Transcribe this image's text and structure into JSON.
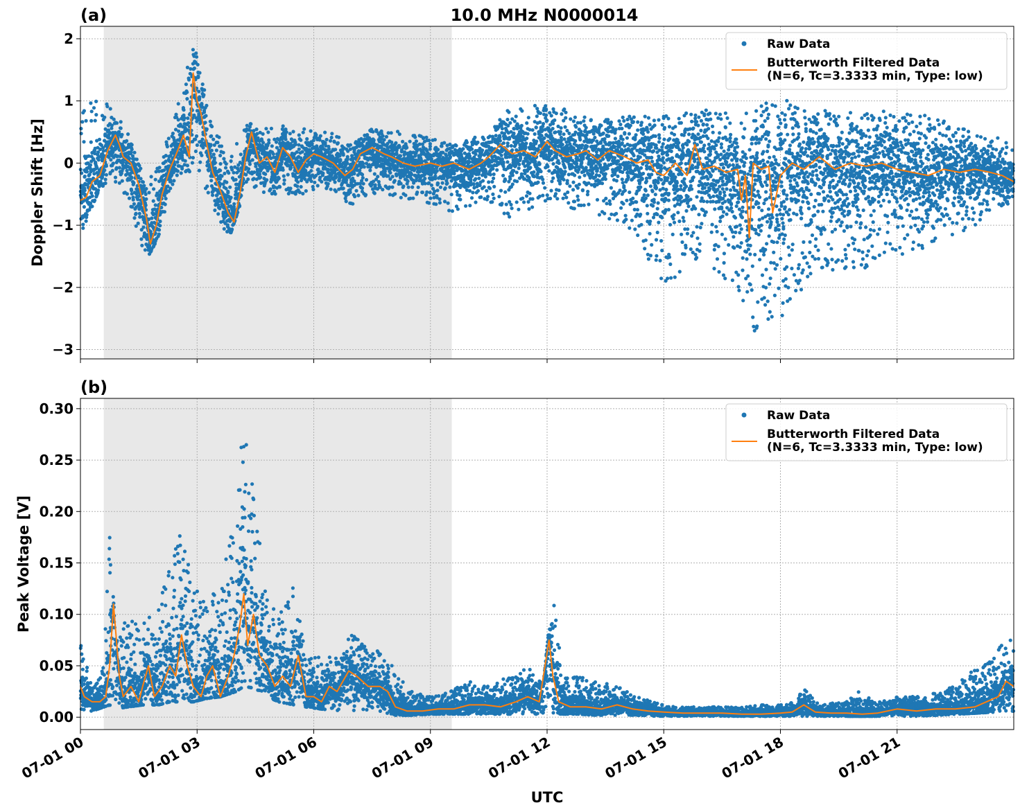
{
  "figure": {
    "title": "10.0 MHz N0000014",
    "xlabel": "UTC"
  },
  "colors": {
    "raw": "#1f77b4",
    "filtered": "#ff7f0e",
    "shade": "#e8e8e8",
    "grid": "#b0b0b0"
  },
  "chart_data": [
    {
      "type": "scatter",
      "panel_label": "(a)",
      "title": "10.0 MHz N0000014",
      "xlabel": "",
      "ylabel": "Doppler Shift [Hz]",
      "xlim_hours": [
        0,
        24
      ],
      "ylim": [
        -3.15,
        2.2
      ],
      "yticks": [
        2,
        1,
        0,
        -1,
        -2,
        -3
      ],
      "ytick_labels": [
        "2",
        "1",
        "0",
        "−1",
        "−2",
        "−3"
      ],
      "grid": true,
      "legend_position": "top-right",
      "shaded_interval_hours": [
        0.6,
        9.55
      ],
      "series": [
        {
          "name": "Raw Data",
          "kind": "points",
          "envelope_x": [
            0,
            0.5,
            0.8,
            1.2,
            1.7,
            2.0,
            2.4,
            2.9,
            3.4,
            3.8,
            4.3,
            4.7,
            5.2,
            5.7,
            6.3,
            7.0,
            7.5,
            8.5,
            9.5,
            10.5,
            11.0,
            12.0,
            13.0,
            14.0,
            15.0,
            16.0,
            17.0,
            17.2,
            18.0,
            19.0,
            20.0,
            21.0,
            22.0,
            23.0,
            24.0
          ],
          "envelope_low": [
            -1.15,
            -0.4,
            -0.3,
            -0.6,
            -1.55,
            -1.2,
            -0.3,
            -0.1,
            -0.7,
            -1.25,
            -0.3,
            -0.5,
            -0.5,
            -0.5,
            -0.4,
            -0.7,
            -0.5,
            -0.6,
            -0.8,
            -0.6,
            -0.9,
            -0.6,
            -0.8,
            -1.0,
            -2.0,
            -1.5,
            -2.2,
            -2.9,
            -2.5,
            -1.7,
            -1.8,
            -1.5,
            -1.3,
            -1.0,
            -0.6
          ],
          "envelope_high": [
            0.9,
            1.05,
            0.9,
            0.55,
            -0.3,
            0.0,
            0.65,
            1.95,
            0.7,
            0.05,
            0.65,
            0.55,
            0.6,
            0.55,
            0.55,
            0.3,
            0.55,
            0.5,
            0.3,
            0.5,
            0.9,
            0.95,
            0.8,
            0.75,
            0.75,
            0.85,
            0.85,
            0.8,
            1.1,
            0.85,
            0.8,
            0.85,
            0.75,
            0.5,
            0.35
          ]
        },
        {
          "name": "Butterworth Filtered Data\n(N=6, Tc=3.3333 min, Type: low)",
          "kind": "line",
          "x": [
            0,
            0.15,
            0.3,
            0.5,
            0.7,
            0.9,
            1.0,
            1.1,
            1.3,
            1.5,
            1.7,
            1.8,
            1.95,
            2.1,
            2.3,
            2.5,
            2.65,
            2.8,
            2.9,
            3.0,
            3.1,
            3.25,
            3.4,
            3.6,
            3.8,
            3.95,
            4.1,
            4.25,
            4.4,
            4.6,
            4.8,
            5.0,
            5.2,
            5.4,
            5.6,
            5.8,
            6.0,
            6.2,
            6.5,
            6.8,
            7.0,
            7.2,
            7.5,
            7.8,
            8.0,
            8.3,
            8.6,
            9.0,
            9.3,
            9.6,
            10.0,
            10.3,
            10.5,
            10.8,
            11.1,
            11.4,
            11.7,
            12.0,
            12.2,
            12.5,
            12.8,
            13.0,
            13.3,
            13.6,
            14.0,
            14.3,
            14.6,
            14.8,
            15.0,
            15.3,
            15.6,
            15.8,
            16.0,
            16.3,
            16.6,
            16.9,
            17.0,
            17.1,
            17.2,
            17.3,
            17.5,
            17.7,
            17.8,
            18.0,
            18.3,
            18.6,
            19.0,
            19.4,
            19.8,
            20.2,
            20.6,
            21.0,
            21.4,
            21.8,
            22.2,
            22.6,
            23.0,
            23.4,
            23.7,
            24.0
          ],
          "y": [
            -0.6,
            -0.55,
            -0.3,
            -0.2,
            0.2,
            0.45,
            0.3,
            0.1,
            0.0,
            -0.35,
            -0.9,
            -1.3,
            -1.0,
            -0.5,
            -0.1,
            0.2,
            0.45,
            0.1,
            1.45,
            1.0,
            0.8,
            0.3,
            -0.15,
            -0.45,
            -0.8,
            -0.95,
            -0.5,
            0.1,
            0.5,
            0.0,
            0.1,
            -0.15,
            0.25,
            0.1,
            -0.15,
            0.05,
            0.15,
            0.1,
            0.0,
            -0.2,
            -0.1,
            0.15,
            0.25,
            0.15,
            0.1,
            0.0,
            -0.05,
            0.0,
            -0.05,
            0.0,
            -0.1,
            0.0,
            0.1,
            0.3,
            0.15,
            0.2,
            0.1,
            0.35,
            0.2,
            0.1,
            0.15,
            0.2,
            0.05,
            0.2,
            0.1,
            0.0,
            0.05,
            -0.15,
            -0.2,
            0.0,
            -0.2,
            0.3,
            -0.1,
            -0.05,
            -0.15,
            -0.1,
            -0.6,
            -0.2,
            -1.2,
            0.0,
            -0.1,
            -0.05,
            -0.8,
            -0.2,
            0.0,
            -0.1,
            0.1,
            -0.1,
            0.0,
            -0.05,
            0.0,
            -0.1,
            -0.15,
            -0.2,
            -0.1,
            -0.15,
            -0.1,
            -0.15,
            -0.2,
            -0.3
          ]
        }
      ]
    },
    {
      "type": "scatter",
      "panel_label": "(b)",
      "xlabel": "UTC",
      "ylabel": "Peak Voltage [V]",
      "xlim_hours": [
        0,
        24
      ],
      "ylim": [
        -0.012,
        0.31
      ],
      "yticks": [
        0.0,
        0.05,
        0.1,
        0.15,
        0.2,
        0.25,
        0.3
      ],
      "ytick_labels": [
        "0.00",
        "0.05",
        "0.10",
        "0.15",
        "0.20",
        "0.25",
        "0.30"
      ],
      "xtick_hours": [
        0,
        3,
        6,
        9,
        12,
        15,
        18,
        21
      ],
      "xtick_labels": [
        "07-01 00",
        "07-01 03",
        "07-01 06",
        "07-01 09",
        "07-01 12",
        "07-01 15",
        "07-01 18",
        "07-01 21"
      ],
      "grid": true,
      "legend_position": "top-right",
      "shaded_interval_hours": [
        0.6,
        9.55
      ],
      "series": [
        {
          "name": "Raw Data",
          "kind": "points",
          "envelope_x": [
            0,
            0.3,
            0.6,
            0.75,
            0.9,
            1.2,
            1.6,
            2.0,
            2.3,
            2.6,
            2.9,
            3.2,
            3.6,
            4.0,
            4.2,
            4.5,
            4.8,
            5.1,
            5.5,
            5.8,
            6.2,
            6.6,
            7.0,
            7.4,
            7.8,
            8.1,
            8.5,
            9.0,
            9.5,
            10.0,
            10.5,
            11.0,
            11.3,
            11.6,
            11.9,
            12.15,
            12.4,
            12.8,
            13.3,
            13.8,
            14.3,
            14.8,
            15.3,
            16.0,
            17.0,
            17.5,
            18.0,
            18.4,
            18.6,
            19.0,
            19.6,
            20.0,
            20.5,
            21.0,
            21.5,
            22.0,
            22.5,
            23.0,
            23.5,
            24.0
          ],
          "envelope_low": [
            0.008,
            0.006,
            0.01,
            0.012,
            0.008,
            0.01,
            0.012,
            0.012,
            0.015,
            0.015,
            0.015,
            0.018,
            0.02,
            0.025,
            0.03,
            0.028,
            0.02,
            0.015,
            0.012,
            0.01,
            0.008,
            0.006,
            0.006,
            0.006,
            0.004,
            0.002,
            0.002,
            0.003,
            0.003,
            0.003,
            0.003,
            0.003,
            0.003,
            0.003,
            0.003,
            0.004,
            0.003,
            0.003,
            0.002,
            0.002,
            0.002,
            0.001,
            0.001,
            0.001,
            0.001,
            0.001,
            0.001,
            0.001,
            0.001,
            0.001,
            0.001,
            0.001,
            0.001,
            0.001,
            0.001,
            0.002,
            0.003,
            0.004,
            0.005,
            0.006
          ],
          "envelope_high": [
            0.075,
            0.03,
            0.05,
            0.205,
            0.07,
            0.1,
            0.09,
            0.11,
            0.145,
            0.185,
            0.13,
            0.11,
            0.13,
            0.2,
            0.295,
            0.2,
            0.12,
            0.1,
            0.14,
            0.06,
            0.06,
            0.06,
            0.085,
            0.065,
            0.065,
            0.045,
            0.025,
            0.02,
            0.025,
            0.035,
            0.03,
            0.04,
            0.045,
            0.05,
            0.03,
            0.125,
            0.04,
            0.04,
            0.035,
            0.03,
            0.02,
            0.015,
            0.01,
            0.01,
            0.01,
            0.012,
            0.012,
            0.015,
            0.03,
            0.012,
            0.015,
            0.025,
            0.015,
            0.02,
            0.02,
            0.025,
            0.03,
            0.05,
            0.065,
            0.08
          ]
        },
        {
          "name": "Butterworth Filtered Data\n(N=6, Tc=3.3333 min, Type: low)",
          "kind": "line",
          "x": [
            0,
            0.1,
            0.3,
            0.5,
            0.65,
            0.75,
            0.85,
            1.0,
            1.1,
            1.3,
            1.5,
            1.6,
            1.75,
            1.9,
            2.1,
            2.3,
            2.45,
            2.6,
            2.75,
            2.9,
            3.1,
            3.25,
            3.4,
            3.6,
            3.8,
            3.95,
            4.1,
            4.2,
            4.3,
            4.45,
            4.6,
            4.8,
            5.0,
            5.2,
            5.4,
            5.6,
            5.8,
            6.0,
            6.2,
            6.4,
            6.6,
            6.9,
            7.1,
            7.4,
            7.7,
            7.9,
            8.1,
            8.4,
            8.8,
            9.2,
            9.6,
            10.0,
            10.4,
            10.8,
            11.2,
            11.5,
            11.8,
            12.05,
            12.15,
            12.3,
            12.6,
            13.0,
            13.4,
            13.8,
            14.2,
            14.6,
            15.0,
            15.5,
            16.0,
            16.5,
            17.0,
            17.5,
            18.0,
            18.3,
            18.6,
            18.9,
            19.3,
            19.7,
            20.1,
            20.5,
            21.0,
            21.5,
            22.0,
            22.5,
            23.0,
            23.3,
            23.6,
            23.8,
            24.0
          ],
          "y": [
            0.03,
            0.02,
            0.015,
            0.015,
            0.02,
            0.05,
            0.11,
            0.04,
            0.02,
            0.03,
            0.015,
            0.03,
            0.05,
            0.02,
            0.03,
            0.05,
            0.04,
            0.08,
            0.05,
            0.03,
            0.02,
            0.04,
            0.05,
            0.02,
            0.04,
            0.06,
            0.09,
            0.12,
            0.07,
            0.1,
            0.06,
            0.05,
            0.03,
            0.04,
            0.03,
            0.06,
            0.02,
            0.02,
            0.015,
            0.03,
            0.025,
            0.045,
            0.04,
            0.03,
            0.03,
            0.025,
            0.01,
            0.006,
            0.006,
            0.008,
            0.008,
            0.012,
            0.012,
            0.01,
            0.015,
            0.02,
            0.015,
            0.075,
            0.04,
            0.015,
            0.01,
            0.01,
            0.008,
            0.012,
            0.008,
            0.006,
            0.005,
            0.004,
            0.004,
            0.004,
            0.003,
            0.003,
            0.004,
            0.005,
            0.012,
            0.005,
            0.004,
            0.004,
            0.003,
            0.004,
            0.008,
            0.006,
            0.008,
            0.008,
            0.01,
            0.015,
            0.02,
            0.035,
            0.03
          ]
        }
      ]
    }
  ]
}
